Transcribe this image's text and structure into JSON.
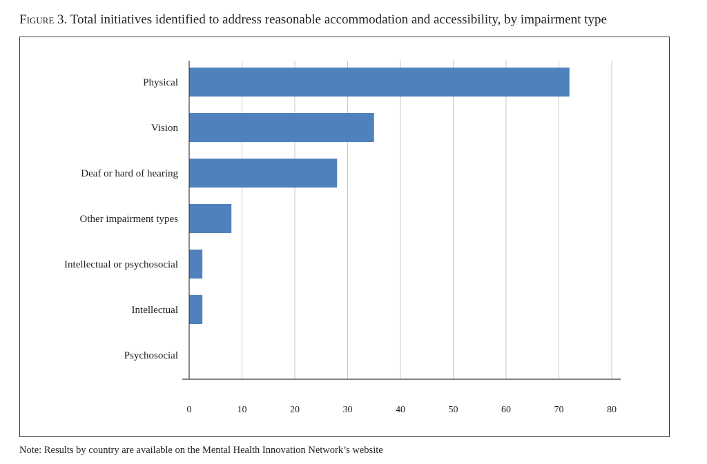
{
  "figure": {
    "label": "Figure 3.",
    "title": "Total initiatives identified to address reasonable accommodation and accessibility, by impairment type"
  },
  "note": "Note: Results by country are available on the Mental Health Innovation Network’s website",
  "chart_data": {
    "type": "bar",
    "orientation": "horizontal",
    "categories": [
      "Physical",
      "Vision",
      "Deaf or hard of hearing",
      "Other impairment types",
      "Intellectual or psychosocial",
      "Intellectual",
      "Psychosocial"
    ],
    "values": [
      72,
      35,
      28,
      8,
      2.5,
      2.5,
      0
    ],
    "xlabel": "",
    "ylabel": "",
    "xlim": [
      0,
      80
    ],
    "xticks": [
      0,
      10,
      20,
      30,
      40,
      50,
      60,
      70,
      80
    ],
    "grid": "vertical",
    "legend": "none",
    "colors": {
      "bar": "#4f81bd",
      "grid": "#c8c8c8",
      "axis": "#3a3a3a"
    }
  }
}
